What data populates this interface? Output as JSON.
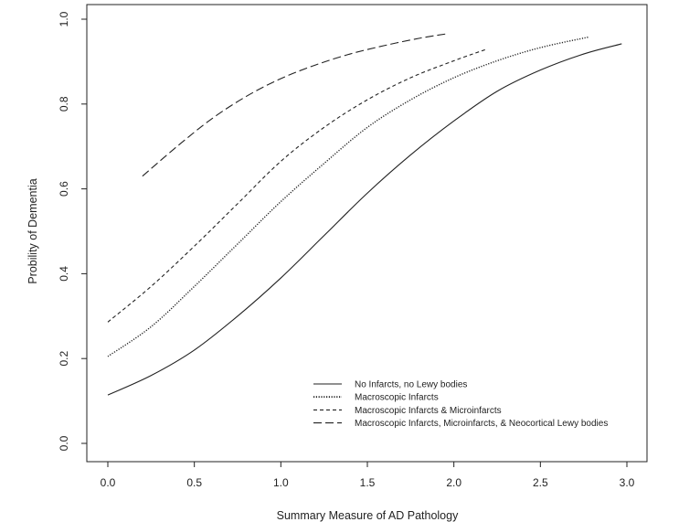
{
  "chart_data": {
    "type": "line",
    "xlabel": "Summary Measure of AD Pathology",
    "ylabel": "Probility of Dementia",
    "xlim": [
      0.0,
      3.0
    ],
    "ylim": [
      0.0,
      1.0
    ],
    "x_ticks": [
      "0.0",
      "0.5",
      "1.0",
      "1.5",
      "2.0",
      "2.5",
      "3.0"
    ],
    "y_ticks": [
      "0.0",
      "0.2",
      "0.4",
      "0.6",
      "0.8",
      "1.0"
    ],
    "grid": false,
    "legend_position": "bottom-right",
    "series": [
      {
        "name": "No Infarcts, no Lewy bodies",
        "dash": "solid",
        "x": [
          0.0,
          0.25,
          0.5,
          0.75,
          1.0,
          1.25,
          1.5,
          1.75,
          2.0,
          2.25,
          2.5,
          2.75,
          2.97
        ],
        "y": [
          0.114,
          0.16,
          0.22,
          0.3,
          0.39,
          0.49,
          0.59,
          0.68,
          0.76,
          0.83,
          0.88,
          0.918,
          0.942
        ]
      },
      {
        "name": "Macroscopic Infarcts",
        "dash": "dotted",
        "x": [
          0.0,
          0.25,
          0.5,
          0.75,
          1.0,
          1.25,
          1.5,
          1.75,
          2.0,
          2.25,
          2.5,
          2.78
        ],
        "y": [
          0.205,
          0.275,
          0.37,
          0.47,
          0.57,
          0.66,
          0.745,
          0.81,
          0.862,
          0.902,
          0.933,
          0.958
        ]
      },
      {
        "name": "Macroscopic Infarcts & Microinfarcts",
        "dash": "dashed",
        "x": [
          0.0,
          0.25,
          0.5,
          0.75,
          1.0,
          1.25,
          1.5,
          1.75,
          2.0,
          2.18
        ],
        "y": [
          0.286,
          0.37,
          0.465,
          0.565,
          0.665,
          0.745,
          0.81,
          0.862,
          0.902,
          0.928
        ]
      },
      {
        "name": "Macroscopic Infarcts, Microinfarcts, & Neocortical Lewy bodies",
        "dash": "longdash",
        "x": [
          0.2,
          0.4,
          0.6,
          0.8,
          1.0,
          1.2,
          1.4,
          1.6,
          1.8,
          1.95
        ],
        "y": [
          0.63,
          0.7,
          0.765,
          0.818,
          0.86,
          0.892,
          0.918,
          0.938,
          0.955,
          0.965
        ]
      }
    ]
  }
}
